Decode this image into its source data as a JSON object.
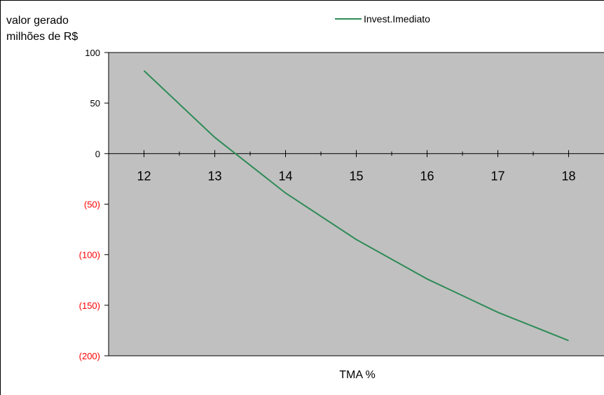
{
  "colors": {
    "plot_background": "#c0c0c0",
    "series_line": "#2e8b57",
    "negative_tick_label": "#ff0000",
    "positive_tick_label": "#000000"
  },
  "chart_data": {
    "type": "line",
    "ylabel_lines": [
      "valor gerado",
      "milhões de R$"
    ],
    "xlabel": "TMA %",
    "x": [
      12,
      13,
      14,
      15,
      16,
      17,
      18
    ],
    "series": [
      {
        "name": "Invest.Imediato",
        "values": [
          82,
          16,
          -39,
          -85,
          -124,
          -157,
          -185
        ]
      }
    ],
    "ylim": [
      -200,
      100
    ],
    "yticks": [
      100,
      50,
      0,
      -50,
      -100,
      -150,
      -200
    ],
    "ytick_labels": [
      "100",
      "50",
      "0",
      "(50)",
      "(100)",
      "(150)",
      "(200)"
    ],
    "xlim": [
      11.5,
      18.5
    ],
    "xtick_labels": [
      "12",
      "13",
      "14",
      "15",
      "16",
      "17",
      "18"
    ],
    "legend_position": "top-center",
    "grid": false
  }
}
